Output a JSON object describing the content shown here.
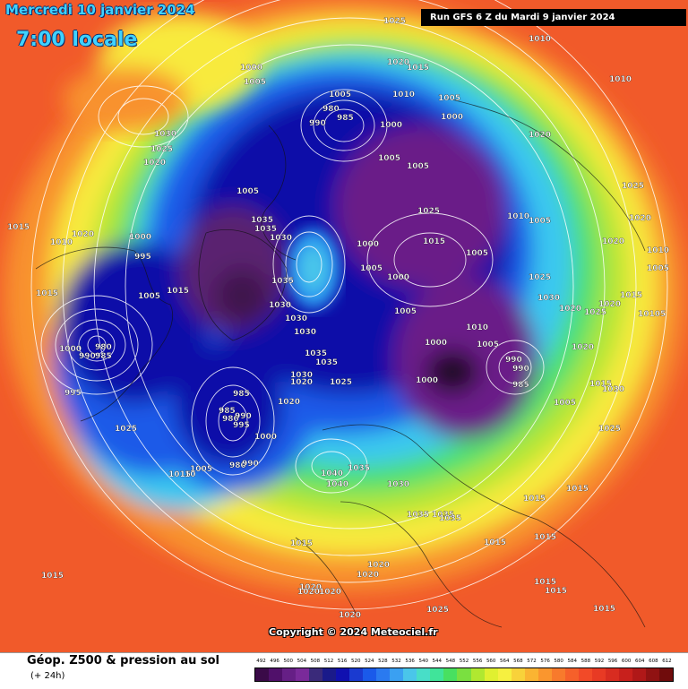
{
  "header": {
    "date_title": "Mercredi 10 janvier 2024",
    "time_title": "7:00 locale",
    "run_info": "Run GFS 6 Z du Mardi 9 janvier 2024"
  },
  "copyright": "Copyright © 2024 Meteociel.fr",
  "footer": {
    "title": "Géop. Z500 & pression au sol",
    "subtitle": "(+ 24h)"
  },
  "legend": {
    "values": [
      "492",
      "496",
      "500",
      "504",
      "508",
      "512",
      "516",
      "520",
      "524",
      "528",
      "532",
      "536",
      "540",
      "544",
      "548",
      "552",
      "556",
      "560",
      "564",
      "568",
      "572",
      "576",
      "580",
      "584",
      "588",
      "592",
      "596",
      "600",
      "604",
      "608",
      "612"
    ],
    "colors": [
      "#3a0a48",
      "#50106a",
      "#661f86",
      "#7a2a9a",
      "#3a2a7a",
      "#1a1a8a",
      "#1010b0",
      "#1a3ad0",
      "#1a5aea",
      "#2a7af0",
      "#3aa0f2",
      "#4ac6ea",
      "#48dec8",
      "#40e49a",
      "#48e060",
      "#7ae040",
      "#b0e830",
      "#e0f030",
      "#f6f040",
      "#f8d23a",
      "#fab432",
      "#fa962e",
      "#f87a2c",
      "#f6602a",
      "#f24a28",
      "#e83a24",
      "#d82c20",
      "#c8201c",
      "#b01818",
      "#901212",
      "#700c0c"
    ]
  },
  "pressure_labels": [
    {
      "text": "1000",
      "kind": "low"
    },
    {
      "text": "1005",
      "kind": "low"
    },
    {
      "text": "1030",
      "kind": "high"
    },
    {
      "text": "1025",
      "kind": "high"
    },
    {
      "text": "1020",
      "kind": "high"
    },
    {
      "text": "1015",
      "kind": "high"
    },
    {
      "text": "1010",
      "kind": "low"
    },
    {
      "text": "995",
      "kind": "low"
    },
    {
      "text": "990",
      "kind": "low"
    },
    {
      "text": "985",
      "kind": "low"
    },
    {
      "text": "980",
      "kind": "low"
    },
    {
      "text": "1035",
      "kind": "high"
    },
    {
      "text": "1040",
      "kind": "high"
    }
  ],
  "icon": "scale-colorbar"
}
